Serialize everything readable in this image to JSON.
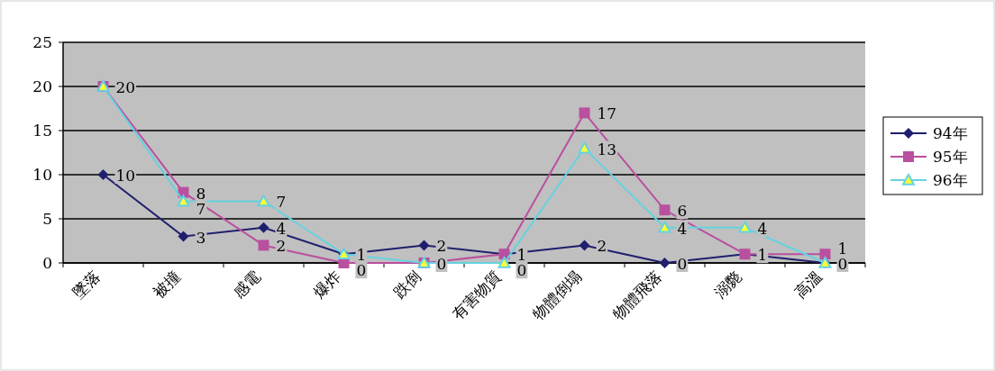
{
  "chart_data": {
    "type": "line",
    "categories": [
      "墜落",
      "被撞",
      "感電",
      "爆炸",
      "跌倒",
      "有害物質",
      "物體倒塌",
      "物體飛落",
      "溺斃",
      "高溫"
    ],
    "series": [
      {
        "name": "94年",
        "color": "#1f1f6e",
        "marker": "diamond",
        "values": [
          10,
          3,
          4,
          1,
          2,
          1,
          2,
          0,
          1,
          0
        ],
        "value_labels": [
          "10",
          "3",
          "4",
          "1",
          "2",
          "1",
          "2",
          "0",
          "1",
          "0"
        ]
      },
      {
        "name": "95年",
        "color": "#b9509f",
        "marker": "square",
        "values": [
          20,
          8,
          2,
          0,
          0,
          1,
          17,
          6,
          1,
          1
        ],
        "value_labels": [
          "20",
          "8",
          "2",
          "0",
          "0",
          null,
          "17",
          "6",
          null,
          "1"
        ]
      },
      {
        "name": "96年",
        "color": "#66d2e0",
        "marker": "triangle",
        "values": [
          20,
          7,
          7,
          1,
          0,
          0,
          13,
          4,
          4,
          0
        ],
        "value_labels": [
          null,
          "7",
          "7",
          null,
          null,
          "0",
          "13",
          "4",
          "4",
          null
        ]
      }
    ],
    "ylim": [
      0,
      25
    ],
    "yticks": [
      0,
      5,
      10,
      15,
      20,
      25
    ],
    "grid": "y",
    "legend": "right"
  }
}
